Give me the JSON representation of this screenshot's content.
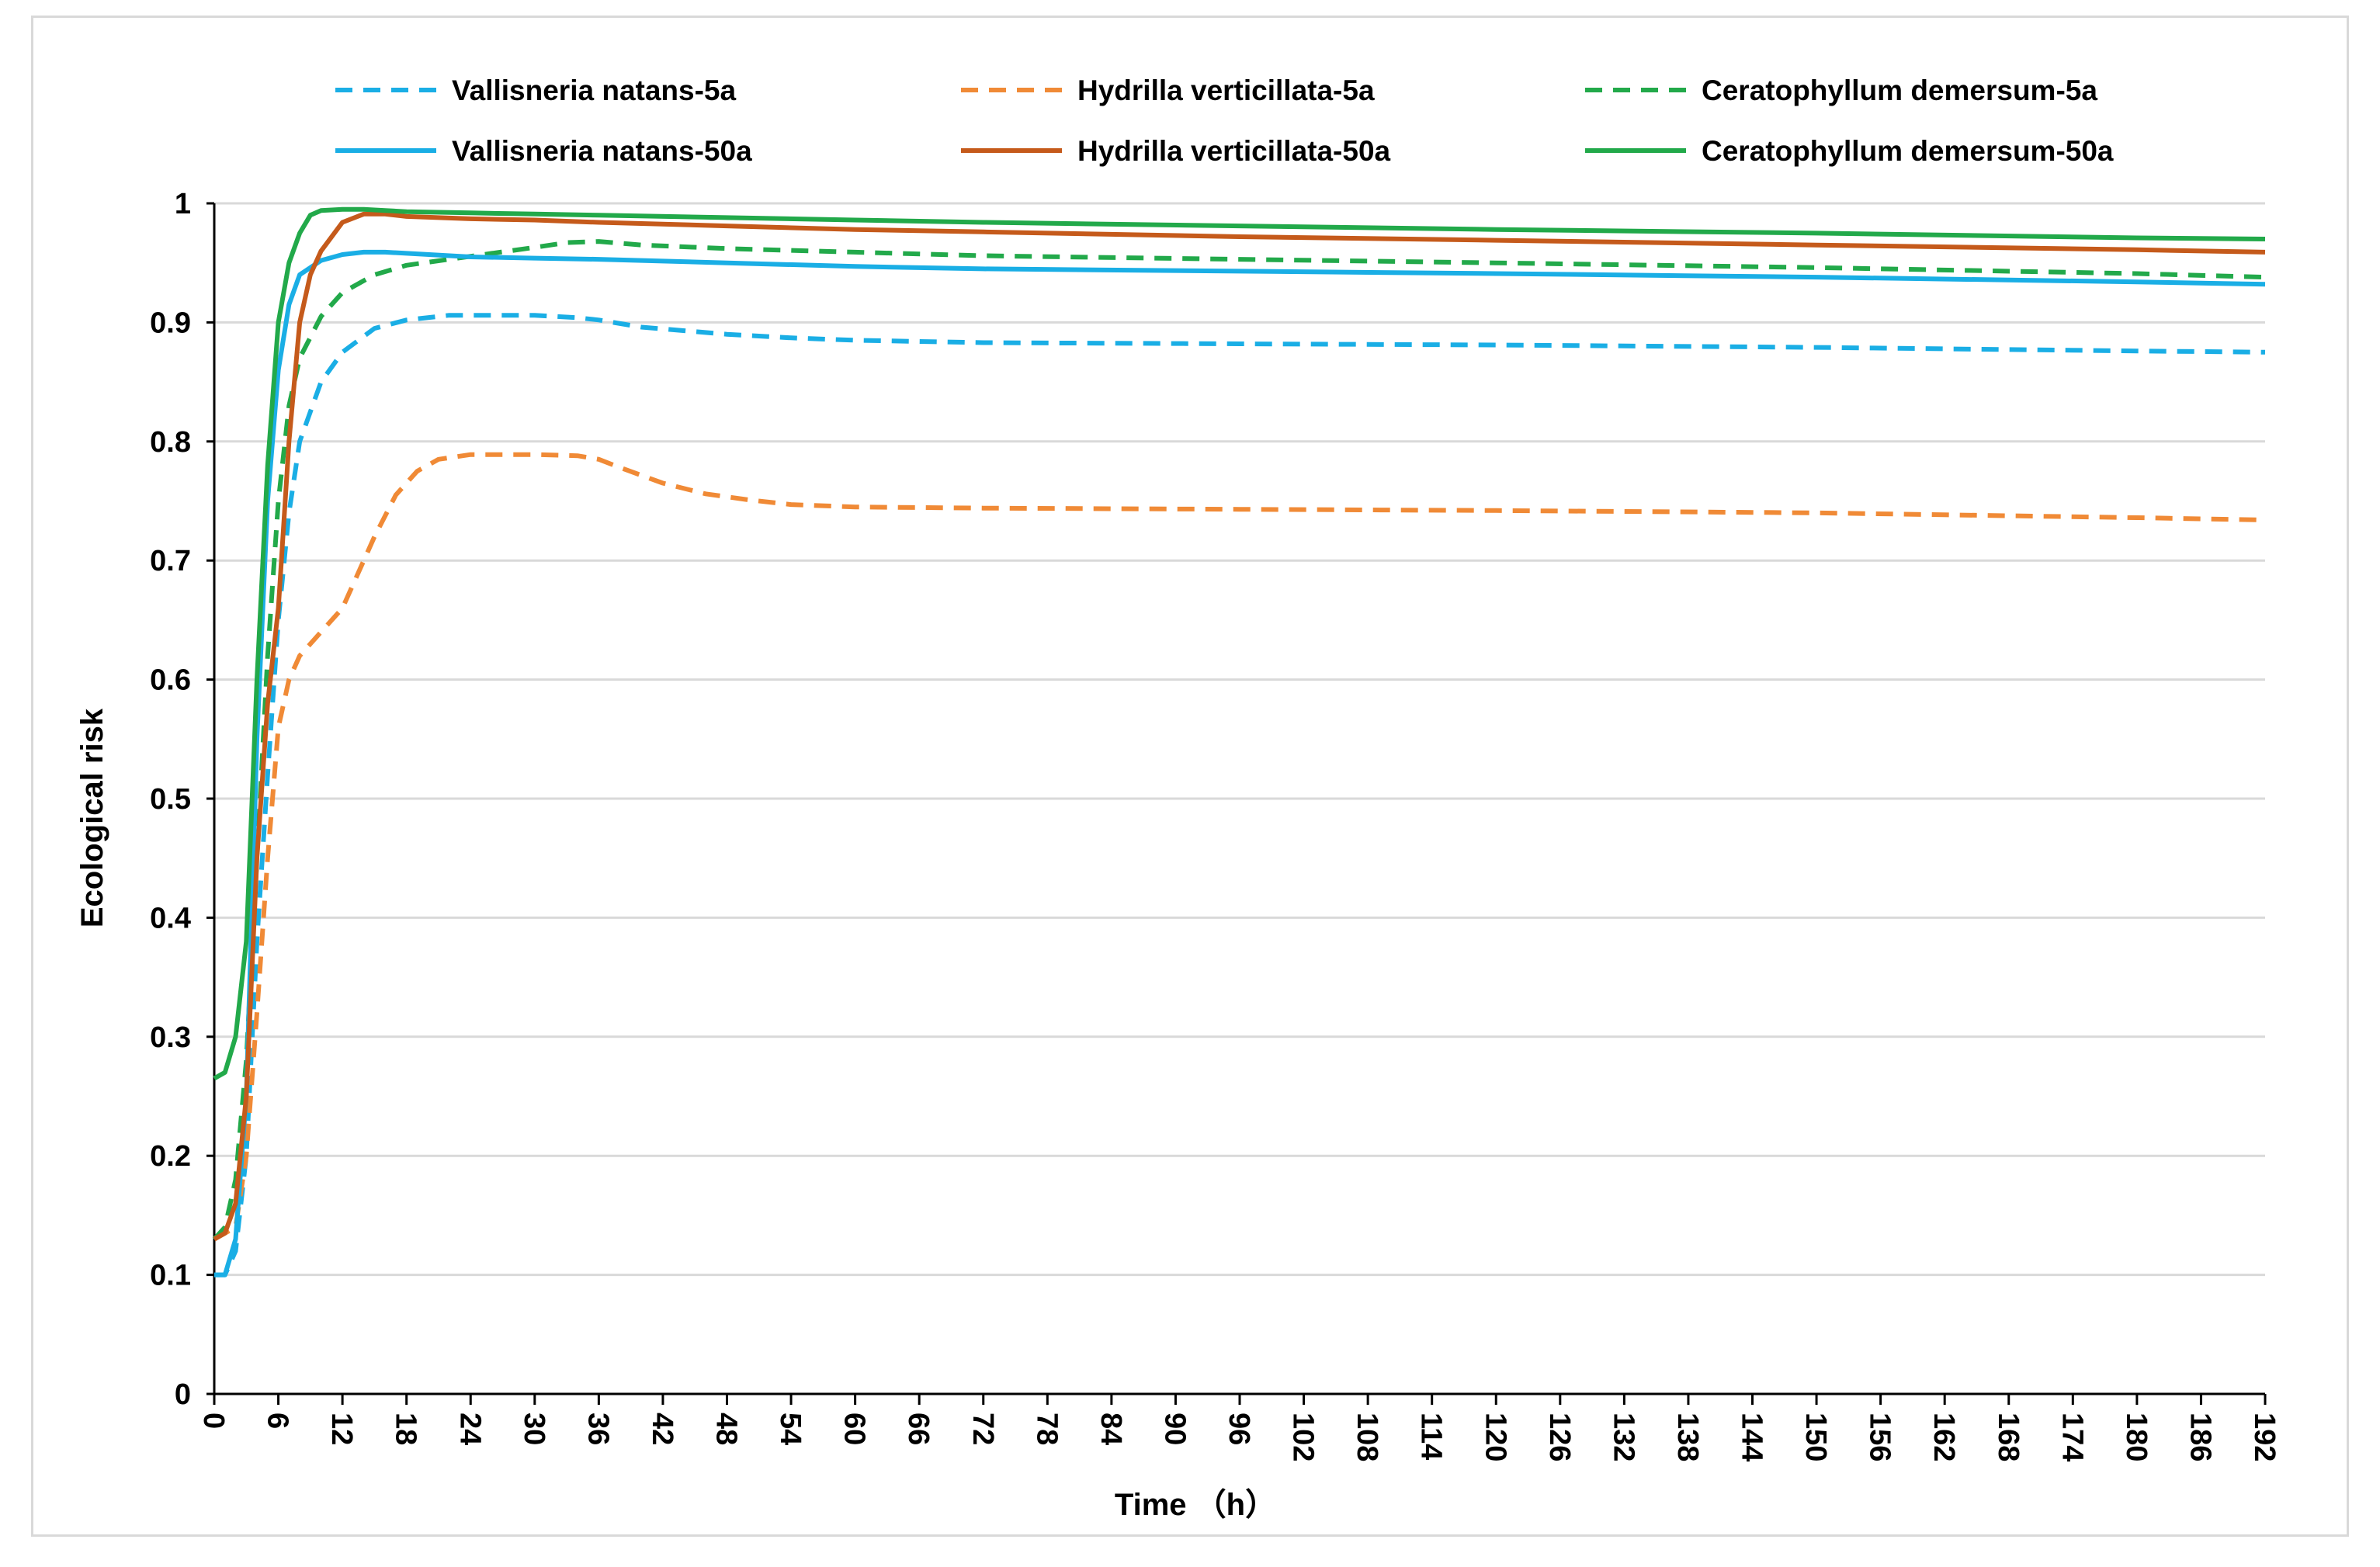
{
  "chart_data": {
    "type": "line",
    "title": "",
    "xlabel": "Time （h）",
    "ylabel": "Ecological risk",
    "xlim": [
      0,
      192
    ],
    "ylim": [
      0,
      1
    ],
    "x_ticks": [
      "0",
      "6",
      "12",
      "18",
      "24",
      "30",
      "36",
      "42",
      "48",
      "54",
      "60",
      "66",
      "72",
      "78",
      "84",
      "90",
      "96",
      "102",
      "108",
      "114",
      "120",
      "126",
      "132",
      "138",
      "144",
      "150",
      "156",
      "162",
      "168",
      "174",
      "180",
      "186",
      "192"
    ],
    "y_ticks": [
      "0",
      "0.1",
      "0.2",
      "0.3",
      "0.4",
      "0.5",
      "0.6",
      "0.7",
      "0.8",
      "0.9",
      "1"
    ],
    "grid": "horizontal",
    "legend_position": "top",
    "series": [
      {
        "name": "Vallisneria natans-5a",
        "color": "#1aaee5",
        "style": "dashed",
        "x": [
          0,
          1,
          2,
          3,
          4,
          5,
          6,
          7,
          8,
          10,
          12,
          15,
          18,
          22,
          26,
          30,
          34,
          36,
          40,
          48,
          54,
          60,
          72,
          96,
          120,
          150,
          180,
          192
        ],
        "y": [
          0.1,
          0.1,
          0.12,
          0.2,
          0.38,
          0.52,
          0.65,
          0.74,
          0.8,
          0.85,
          0.875,
          0.895,
          0.902,
          0.906,
          0.906,
          0.906,
          0.904,
          0.902,
          0.896,
          0.89,
          0.887,
          0.885,
          0.883,
          0.882,
          0.881,
          0.879,
          0.876,
          0.875
        ]
      },
      {
        "name": "Hydrilla verticillata-5a",
        "color": "#f08a36",
        "style": "dashed",
        "x": [
          0,
          2,
          3,
          4,
          5,
          6,
          7,
          8,
          9,
          10,
          11,
          12,
          13,
          15,
          17,
          19,
          21,
          24,
          30,
          34,
          36,
          38,
          42,
          46,
          50,
          54,
          60,
          72,
          96,
          120,
          150,
          180,
          192
        ],
        "y": [
          0.13,
          0.14,
          0.2,
          0.32,
          0.45,
          0.56,
          0.6,
          0.62,
          0.63,
          0.64,
          0.65,
          0.66,
          0.68,
          0.72,
          0.755,
          0.775,
          0.785,
          0.789,
          0.789,
          0.788,
          0.785,
          0.778,
          0.765,
          0.756,
          0.751,
          0.747,
          0.745,
          0.744,
          0.743,
          0.742,
          0.74,
          0.736,
          0.734
        ]
      },
      {
        "name": "Ceratophyllum demersum-5a",
        "color": "#22a94a",
        "style": "dashed",
        "x": [
          0,
          1,
          2,
          3,
          4,
          5,
          6,
          7,
          8,
          10,
          12,
          15,
          18,
          22,
          26,
          30,
          33,
          36,
          40,
          48,
          60,
          72,
          96,
          120,
          150,
          180,
          192
        ],
        "y": [
          0.13,
          0.14,
          0.18,
          0.28,
          0.45,
          0.62,
          0.75,
          0.83,
          0.87,
          0.905,
          0.925,
          0.94,
          0.948,
          0.953,
          0.958,
          0.963,
          0.967,
          0.968,
          0.965,
          0.962,
          0.959,
          0.956,
          0.953,
          0.95,
          0.946,
          0.941,
          0.938
        ]
      },
      {
        "name": "Vallisneria natans-50a",
        "color": "#1aaee5",
        "style": "solid",
        "x": [
          0,
          1,
          2,
          3,
          4,
          5,
          6,
          7,
          8,
          10,
          12,
          14,
          16,
          18,
          24,
          30,
          36,
          48,
          60,
          72,
          96,
          120,
          150,
          180,
          192
        ],
        "y": [
          0.1,
          0.1,
          0.13,
          0.25,
          0.55,
          0.75,
          0.86,
          0.915,
          0.94,
          0.952,
          0.957,
          0.959,
          0.959,
          0.958,
          0.955,
          0.954,
          0.953,
          0.95,
          0.947,
          0.945,
          0.943,
          0.941,
          0.938,
          0.934,
          0.932
        ]
      },
      {
        "name": "Hydrilla verticillata-50a",
        "color": "#c55a1b",
        "style": "solid",
        "x": [
          0,
          1,
          2,
          3,
          4,
          5,
          6,
          7,
          8,
          9,
          10,
          12,
          14,
          16,
          18,
          24,
          30,
          36,
          48,
          60,
          72,
          96,
          120,
          150,
          180,
          192
        ],
        "y": [
          0.13,
          0.135,
          0.16,
          0.25,
          0.45,
          0.58,
          0.66,
          0.8,
          0.9,
          0.94,
          0.96,
          0.984,
          0.991,
          0.991,
          0.989,
          0.987,
          0.986,
          0.984,
          0.981,
          0.978,
          0.976,
          0.972,
          0.969,
          0.965,
          0.961,
          0.959
        ]
      },
      {
        "name": "Ceratophyllum demersum-50a",
        "color": "#22a94a",
        "style": "solid",
        "x": [
          0,
          1,
          2,
          3,
          4,
          5,
          6,
          7,
          8,
          9,
          10,
          12,
          14,
          16,
          18,
          24,
          30,
          36,
          48,
          60,
          72,
          96,
          120,
          150,
          180,
          192
        ],
        "y": [
          0.265,
          0.27,
          0.3,
          0.38,
          0.6,
          0.78,
          0.9,
          0.95,
          0.975,
          0.99,
          0.994,
          0.995,
          0.995,
          0.994,
          0.993,
          0.992,
          0.991,
          0.99,
          0.988,
          0.986,
          0.984,
          0.981,
          0.978,
          0.975,
          0.971,
          0.97
        ]
      }
    ]
  }
}
